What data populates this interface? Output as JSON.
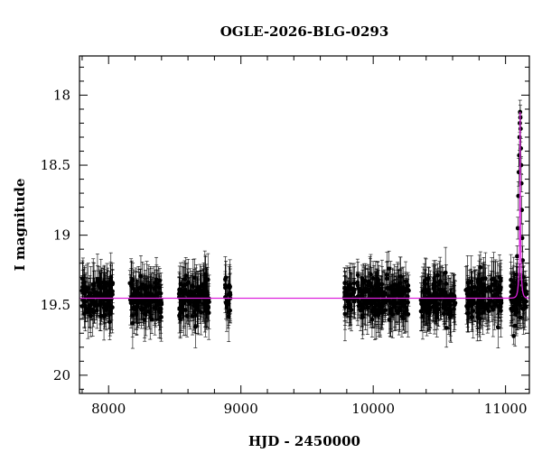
{
  "chart_data": {
    "type": "scatter",
    "title": "OGLE-2026-BLG-0293",
    "xlabel": "HJD - 2450000",
    "ylabel": "I magnitude",
    "xlim": [
      7780,
      11180
    ],
    "ylim": [
      20.13,
      17.72
    ],
    "y_inverted": true,
    "x_ticks": [
      8000,
      9000,
      10000,
      11000
    ],
    "y_ticks": [
      18,
      18.5,
      19,
      19.5,
      20
    ],
    "x_tick_labels": [
      "8000",
      "9000",
      "10000",
      "11000"
    ],
    "y_tick_labels": [
      "18",
      "18.5",
      "19",
      "19.5",
      "20"
    ],
    "grid": false,
    "colors": {
      "points": "#000000",
      "model": "#dd22dd",
      "axes": "#000000"
    },
    "series": [
      {
        "kind": "observations",
        "baseline_mag": 19.45,
        "typical_scatter_mag": 0.1,
        "typical_error_mag": 0.13,
        "seasons": [
          {
            "x_start": 7800,
            "x_end": 8040
          },
          {
            "x_start": 8160,
            "x_end": 8400
          },
          {
            "x_start": 8530,
            "x_end": 8760
          },
          {
            "x_start": 8880,
            "x_end": 8920
          },
          {
            "x_start": 9780,
            "x_end": 9860
          },
          {
            "x_start": 9880,
            "x_end": 10270
          },
          {
            "x_start": 10360,
            "x_end": 10620
          },
          {
            "x_start": 10700,
            "x_end": 10970
          },
          {
            "x_start": 11040,
            "x_end": 11160
          }
        ],
        "event_points": [
          {
            "x": 11062,
            "y": 19.72
          },
          {
            "x": 11075,
            "y": 19.38
          },
          {
            "x": 11082,
            "y": 19.28
          },
          {
            "x": 11088,
            "y": 19.15
          },
          {
            "x": 11093,
            "y": 18.95
          },
          {
            "x": 11097,
            "y": 18.72
          },
          {
            "x": 11100,
            "y": 18.55
          },
          {
            "x": 11103,
            "y": 18.43
          },
          {
            "x": 11106,
            "y": 18.3
          },
          {
            "x": 11108,
            "y": 18.2
          },
          {
            "x": 11110,
            "y": 18.12
          },
          {
            "x": 11112,
            "y": 18.16
          },
          {
            "x": 11114,
            "y": 18.24
          },
          {
            "x": 11116,
            "y": 18.38
          },
          {
            "x": 11118,
            "y": 18.5
          },
          {
            "x": 11120,
            "y": 18.63
          },
          {
            "x": 11123,
            "y": 18.82
          },
          {
            "x": 11126,
            "y": 19.02
          },
          {
            "x": 11130,
            "y": 19.18
          },
          {
            "x": 11135,
            "y": 19.3
          },
          {
            "x": 11140,
            "y": 19.4
          },
          {
            "x": 11146,
            "y": 19.43
          },
          {
            "x": 11152,
            "y": 19.35
          },
          {
            "x": 11158,
            "y": 19.42
          }
        ]
      },
      {
        "kind": "model",
        "baseline_mag": 19.45,
        "peak_x": 11110,
        "peak_mag": 18.12,
        "u0": 0.02,
        "tE": 14
      }
    ]
  }
}
